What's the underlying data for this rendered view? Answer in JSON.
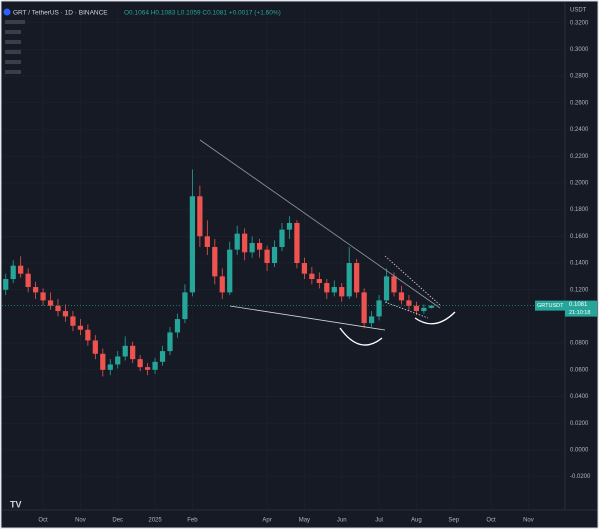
{
  "chart_data": {
    "type": "candlestick",
    "title": "GRT / TetherUS · 1D · BINANCE",
    "legend_values": "O0.1064 H0.1083 L0.1059 C0.1081 +0.0017 (+1.60%)",
    "symbol": "GRTUSDT",
    "countdown": "21:10:18",
    "currency": "USDT",
    "up_color": "#26a69a",
    "down_color": "#ef5350",
    "grid": true,
    "categories": [
      null,
      null,
      null,
      null,
      null,
      "Oct",
      null,
      null,
      null,
      null,
      "Nov",
      null,
      null,
      null,
      null,
      "Dec",
      null,
      null,
      null,
      null,
      "2025",
      null,
      null,
      null,
      null,
      "Feb",
      null,
      null,
      null,
      null,
      null,
      null,
      null,
      null,
      null,
      "Apr",
      null,
      null,
      null,
      null,
      "May",
      null,
      null,
      null,
      null,
      "Jun",
      null,
      null,
      null,
      null,
      "Jul",
      null,
      null,
      null,
      null,
      "Aug",
      null,
      null,
      null,
      null,
      "Sep",
      null,
      null,
      null,
      null,
      "Oct",
      null,
      null,
      null,
      null,
      "Nov",
      null,
      null,
      null,
      null
    ],
    "open": [
      0.12,
      0.128,
      0.138,
      0.132,
      0.122,
      0.118,
      0.112,
      0.108,
      0.104,
      0.1,
      0.093,
      0.09,
      0.082,
      0.072,
      0.06,
      0.064,
      0.07,
      0.078,
      0.068,
      0.062,
      0.06,
      0.066,
      0.074,
      0.088,
      0.098,
      0.118,
      0.19,
      0.16,
      0.152,
      0.13,
      0.118,
      0.15,
      0.162,
      0.148,
      0.155,
      0.15,
      0.14,
      0.152,
      0.165,
      0.17,
      0.14,
      0.132,
      0.128,
      0.125,
      0.118,
      0.122,
      0.115,
      0.14,
      0.118,
      0.095,
      0.1,
      0.112,
      0.13,
      0.118,
      0.112,
      0.108,
      0.104,
      0.1064,
      null,
      null,
      null,
      null,
      null,
      null,
      null,
      null,
      null,
      null,
      null,
      null,
      null,
      null,
      null,
      null,
      null
    ],
    "high": [
      0.132,
      0.142,
      0.145,
      0.136,
      0.126,
      0.121,
      0.118,
      0.113,
      0.109,
      0.104,
      0.098,
      0.094,
      0.086,
      0.076,
      0.068,
      0.074,
      0.085,
      0.081,
      0.071,
      0.065,
      0.069,
      0.078,
      0.092,
      0.102,
      0.124,
      0.21,
      0.198,
      0.172,
      0.158,
      0.136,
      0.156,
      0.168,
      0.166,
      0.16,
      0.158,
      0.153,
      0.157,
      0.17,
      0.175,
      0.172,
      0.144,
      0.137,
      0.133,
      0.128,
      0.127,
      0.125,
      0.152,
      0.143,
      0.121,
      0.104,
      0.116,
      0.136,
      0.133,
      0.123,
      0.116,
      0.111,
      0.109,
      0.1083,
      null,
      null,
      null,
      null,
      null,
      null,
      null,
      null,
      null,
      null,
      null,
      null,
      null,
      null,
      null,
      null,
      null
    ],
    "low": [
      0.116,
      0.125,
      0.129,
      0.118,
      0.113,
      0.108,
      0.105,
      0.1,
      0.096,
      0.089,
      0.086,
      0.078,
      0.068,
      0.055,
      0.056,
      0.061,
      0.067,
      0.065,
      0.059,
      0.056,
      0.057,
      0.063,
      0.071,
      0.084,
      0.095,
      0.115,
      0.152,
      0.146,
      0.124,
      0.113,
      0.116,
      0.146,
      0.142,
      0.144,
      0.144,
      0.134,
      0.137,
      0.149,
      0.158,
      0.136,
      0.128,
      0.124,
      0.121,
      0.113,
      0.115,
      0.111,
      0.113,
      0.114,
      0.091,
      0.092,
      0.097,
      0.11,
      0.115,
      0.109,
      0.104,
      0.101,
      0.102,
      0.1059,
      null,
      null,
      null,
      null,
      null,
      null,
      null,
      null,
      null,
      null,
      null,
      null,
      null,
      null,
      null,
      null,
      null
    ],
    "close": [
      0.128,
      0.138,
      0.132,
      0.122,
      0.118,
      0.112,
      0.108,
      0.104,
      0.1,
      0.093,
      0.09,
      0.082,
      0.072,
      0.06,
      0.064,
      0.07,
      0.078,
      0.068,
      0.062,
      0.06,
      0.066,
      0.074,
      0.088,
      0.098,
      0.118,
      0.19,
      0.16,
      0.152,
      0.13,
      0.118,
      0.15,
      0.162,
      0.148,
      0.155,
      0.15,
      0.14,
      0.152,
      0.165,
      0.17,
      0.14,
      0.132,
      0.128,
      0.125,
      0.118,
      0.122,
      0.115,
      0.14,
      0.118,
      0.095,
      0.1,
      0.112,
      0.13,
      0.118,
      0.112,
      0.108,
      0.104,
      0.1064,
      0.1081,
      null,
      null,
      null,
      null,
      null,
      null,
      null,
      null,
      null,
      null,
      null,
      null,
      null,
      null,
      null,
      null,
      null
    ],
    "ylim": [
      -0.045,
      0.331
    ],
    "yticks": [
      {
        "value": 0.32,
        "label": "0.3200"
      },
      {
        "value": 0.3,
        "label": "0.3000"
      },
      {
        "value": 0.28,
        "label": "0.2800"
      },
      {
        "value": 0.26,
        "label": "0.2600"
      },
      {
        "value": 0.24,
        "label": "0.2400"
      },
      {
        "value": 0.22,
        "label": "0.2200"
      },
      {
        "value": 0.2,
        "label": "0.2000"
      },
      {
        "value": 0.18,
        "label": "0.1800"
      },
      {
        "value": 0.16,
        "label": "0.1600"
      },
      {
        "value": 0.14,
        "label": "0.1400"
      },
      {
        "value": 0.12,
        "label": "0.1200"
      },
      {
        "value": 0.08,
        "label": "0.0800"
      },
      {
        "value": 0.06,
        "label": "0.0600"
      },
      {
        "value": 0.04,
        "label": "0.0400"
      },
      {
        "value": 0.02,
        "label": "0.0200"
      },
      {
        "value": 0,
        "label": "0.0000"
      },
      {
        "value": -0.02,
        "label": "-0.0200"
      }
    ]
  }
}
